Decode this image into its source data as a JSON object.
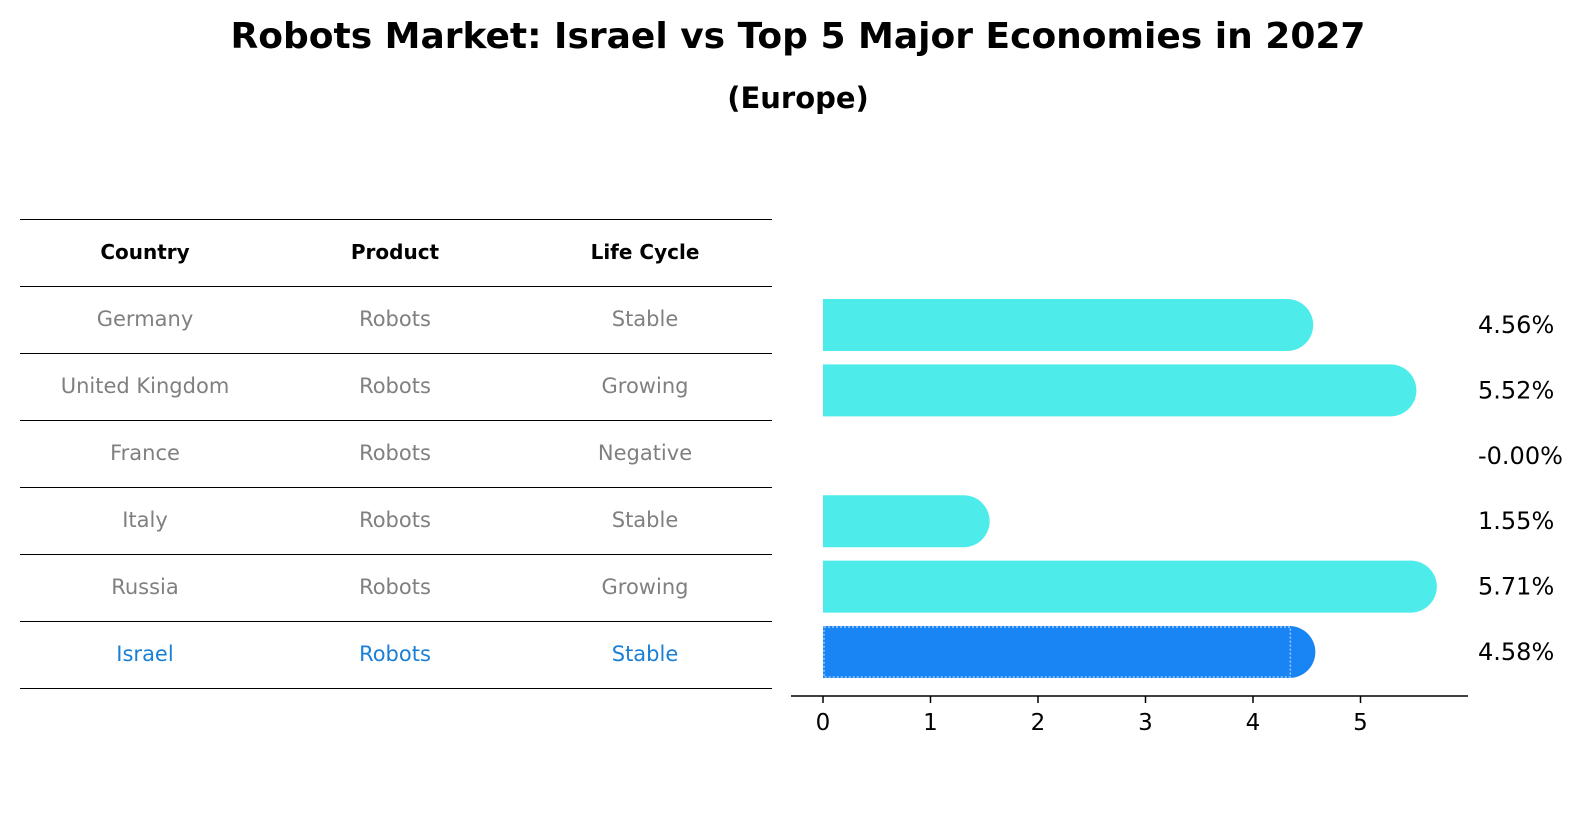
{
  "title": "Robots Market: Israel vs Top 5 Major Economies in 2027",
  "subtitle": "(Europe)",
  "table": {
    "headers": [
      "Country",
      "Product",
      "Life Cycle"
    ],
    "rows": [
      [
        "Germany",
        "Robots",
        "Stable"
      ],
      [
        "United Kingdom",
        "Robots",
        "Growing"
      ],
      [
        "France",
        "Robots",
        "Negative"
      ],
      [
        "Italy",
        "Robots",
        "Stable"
      ],
      [
        "Russia",
        "Robots",
        "Growing"
      ],
      [
        "Israel",
        "Robots",
        "Stable"
      ]
    ]
  },
  "chart_data": {
    "type": "bar",
    "orientation": "horizontal",
    "categories": [
      "Germany",
      "United Kingdom",
      "France",
      "Italy",
      "Russia",
      "Israel"
    ],
    "values": [
      4.56,
      5.52,
      -0.0,
      1.55,
      5.71,
      4.58
    ],
    "value_labels": [
      "4.56%",
      "5.52%",
      "-0.00%",
      "1.55%",
      "5.71%",
      "4.58%"
    ],
    "highlight_category": "Israel",
    "x_ticks": [
      "0",
      "1",
      "2",
      "3",
      "4",
      "5"
    ],
    "xlim": [
      -0.3,
      6.0
    ],
    "colors": {
      "default": "#4deceb",
      "highlight": "#1984f4",
      "text": "#000000",
      "table_text": "#808080",
      "table_highlight": "#1a7fd6"
    }
  }
}
